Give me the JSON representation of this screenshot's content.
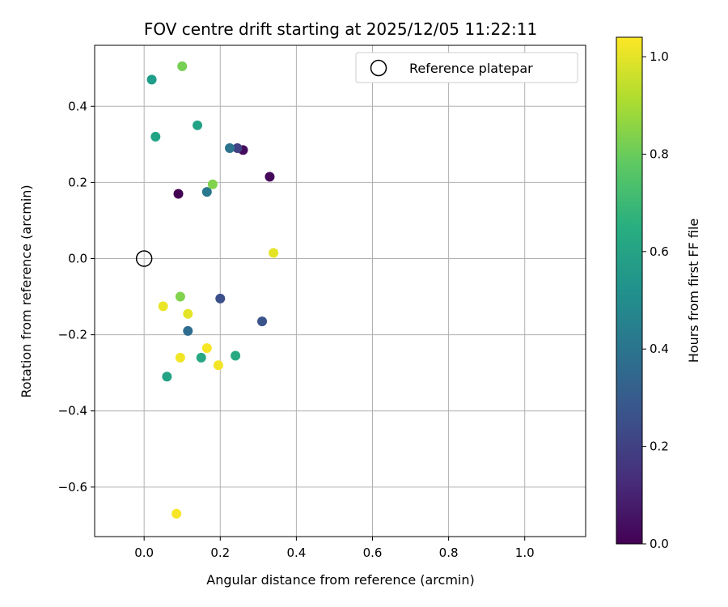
{
  "chart_data": {
    "type": "scatter",
    "title": "FOV centre drift starting at 2025/12/05 11:22:11",
    "xlabel": "Angular distance from reference (arcmin)",
    "ylabel": "Rotation from reference (arcmin)",
    "xlim": [
      -0.13,
      1.16
    ],
    "ylim": [
      -0.73,
      0.56
    ],
    "xticks": [
      0.0,
      0.2,
      0.4,
      0.6,
      0.8,
      1.0
    ],
    "xtick_labels": [
      "0.0",
      "0.2",
      "0.4",
      "0.6",
      "0.8",
      "1.0"
    ],
    "yticks": [
      -0.6,
      -0.4,
      -0.2,
      0.0,
      0.2,
      0.4
    ],
    "ytick_labels": [
      "−0.6",
      "−0.4",
      "−0.2",
      "0.0",
      "0.2",
      "0.4"
    ],
    "grid": true,
    "legend": {
      "position": "top-right",
      "entries": [
        "Reference platepar"
      ]
    },
    "reference_point": {
      "x": 0.0,
      "y": 0.0,
      "label": "Reference platepar"
    },
    "colorbar": {
      "label": "Hours from first FF file",
      "range": [
        0.0,
        1.04
      ],
      "ticks": [
        0.0,
        0.2,
        0.4,
        0.6,
        0.8,
        1.0
      ],
      "tick_labels": [
        "0.0",
        "0.2",
        "0.4",
        "0.6",
        "0.8",
        "1.0"
      ],
      "colormap": "viridis"
    },
    "points": [
      {
        "x": 0.09,
        "y": 0.17,
        "c": 0.0
      },
      {
        "x": 0.26,
        "y": 0.285,
        "c": 0.03
      },
      {
        "x": 0.33,
        "y": 0.215,
        "c": 0.02
      },
      {
        "x": 0.245,
        "y": 0.29,
        "c": 0.2
      },
      {
        "x": 0.2,
        "y": -0.105,
        "c": 0.25
      },
      {
        "x": 0.31,
        "y": -0.165,
        "c": 0.27
      },
      {
        "x": 0.115,
        "y": -0.19,
        "c": 0.37
      },
      {
        "x": 0.225,
        "y": 0.29,
        "c": 0.4
      },
      {
        "x": 0.165,
        "y": 0.175,
        "c": 0.42
      },
      {
        "x": 0.14,
        "y": 0.35,
        "c": 0.6
      },
      {
        "x": 0.02,
        "y": 0.47,
        "c": 0.58
      },
      {
        "x": 0.03,
        "y": 0.32,
        "c": 0.6
      },
      {
        "x": 0.06,
        "y": -0.31,
        "c": 0.6
      },
      {
        "x": 0.15,
        "y": -0.26,
        "c": 0.62
      },
      {
        "x": 0.24,
        "y": -0.255,
        "c": 0.63
      },
      {
        "x": 0.1,
        "y": 0.505,
        "c": 0.82
      },
      {
        "x": 0.18,
        "y": 0.195,
        "c": 0.84
      },
      {
        "x": 0.095,
        "y": -0.1,
        "c": 0.84
      },
      {
        "x": 0.34,
        "y": 0.015,
        "c": 1.0
      },
      {
        "x": 0.05,
        "y": -0.125,
        "c": 1.01
      },
      {
        "x": 0.115,
        "y": -0.145,
        "c": 1.0
      },
      {
        "x": 0.095,
        "y": -0.26,
        "c": 1.02
      },
      {
        "x": 0.165,
        "y": -0.235,
        "c": 1.03
      },
      {
        "x": 0.195,
        "y": -0.28,
        "c": 1.02
      },
      {
        "x": 0.085,
        "y": -0.67,
        "c": 1.03
      }
    ]
  }
}
